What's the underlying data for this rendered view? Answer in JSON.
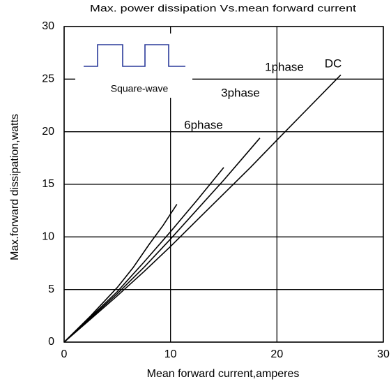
{
  "chart_data": {
    "type": "line",
    "title": "Max. power dissipation Vs.mean forward current",
    "x_label": "Mean forward current,amperes",
    "y_label": "Max.forward dissipation,watts",
    "xlim": [
      0,
      30
    ],
    "ylim": [
      0,
      30
    ],
    "xticks": [
      0,
      10,
      20,
      30
    ],
    "yticks": [
      0,
      5,
      10,
      15,
      20,
      25,
      30
    ],
    "grid": true,
    "inset_label": "Square-wave",
    "series": [
      {
        "name": "DC",
        "color": "#000000",
        "x": [
          0,
          2.5,
          5,
          7.5,
          10,
          12.5,
          15,
          17.5,
          20,
          23,
          26
        ],
        "values": [
          0,
          2.2,
          4.4,
          6.7,
          9.1,
          11.6,
          14.1,
          16.6,
          19.2,
          22.3,
          25.4
        ]
      },
      {
        "name": "1phase",
        "color": "#000000",
        "x": [
          0,
          2.5,
          5,
          7.5,
          10,
          12.5,
          15,
          16.7,
          18.4
        ],
        "values": [
          0,
          2.3,
          4.6,
          7.1,
          9.8,
          12.6,
          15.4,
          17.4,
          19.4
        ]
      },
      {
        "name": "3phase",
        "color": "#000000",
        "x": [
          0,
          2.5,
          5,
          7.5,
          10,
          12.5,
          15
        ],
        "values": [
          0,
          2.4,
          4.8,
          7.6,
          10.5,
          13.5,
          16.6
        ]
      },
      {
        "name": "6phase",
        "color": "#000000",
        "x": [
          0,
          2.5,
          5,
          6.5,
          8,
          9.3,
          10.6
        ],
        "values": [
          0,
          2.5,
          5.2,
          7.1,
          9.3,
          11.1,
          13.1
        ]
      }
    ]
  }
}
